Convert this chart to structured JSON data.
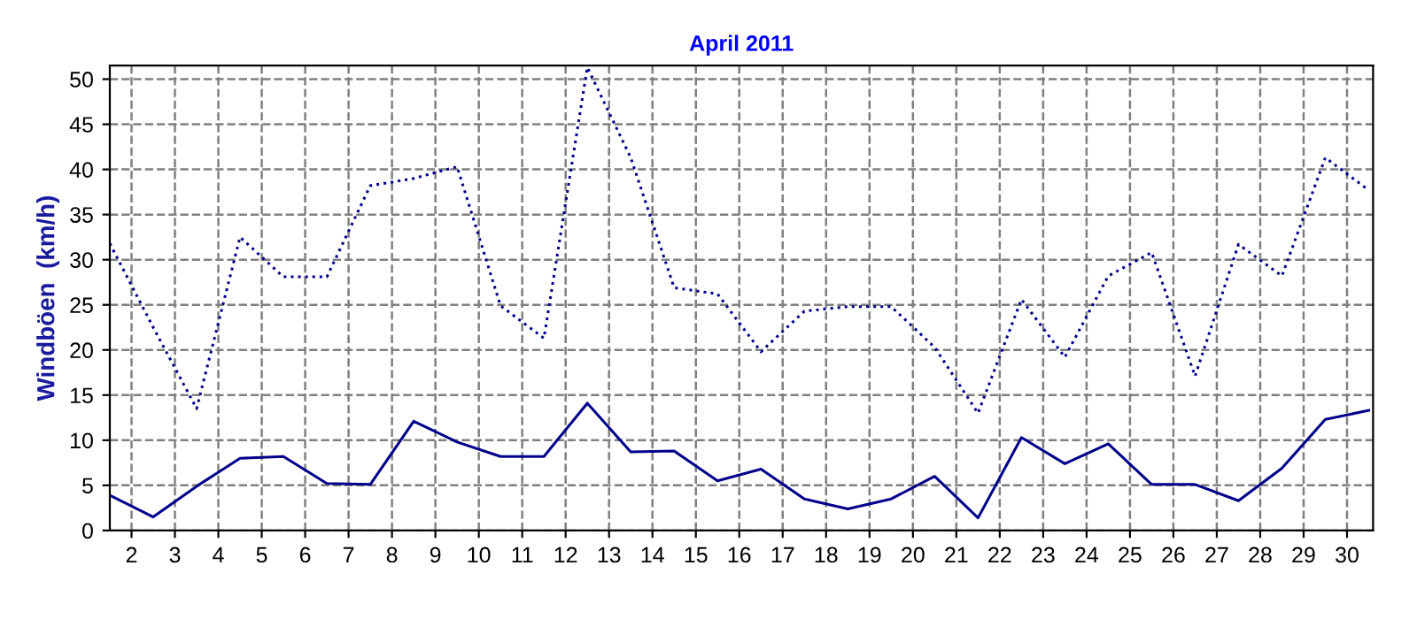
{
  "chart_data": {
    "type": "line",
    "title": "April 2011",
    "ylabel": "Windböen  (km/h)",
    "x": [
      1.5,
      2.5,
      3.5,
      4.5,
      5.5,
      6.5,
      7.5,
      8.5,
      9.5,
      10.5,
      11.5,
      12.5,
      13.5,
      14.5,
      15.5,
      16.5,
      17.5,
      18.5,
      19.5,
      20.5,
      21.5,
      22.5,
      23.5,
      24.5,
      25.5,
      26.5,
      27.5,
      28.5,
      29.5,
      30.5
    ],
    "series": [
      {
        "color": "#00008b",
        "line_style": "dotted",
        "values": [
          31.8,
          22.5,
          13.5,
          32.5,
          28.1,
          28.1,
          38.2,
          39.0,
          40.3,
          24.9,
          21.3,
          51.3,
          41.3,
          26.9,
          26.2,
          19.8,
          24.3,
          24.8,
          24.8,
          20.3,
          13.0,
          25.6,
          19.2,
          28.2,
          30.8,
          17.1,
          31.7,
          28.2,
          41.3,
          37.7
        ]
      },
      {
        "color": "#00008b",
        "line_style": "solid",
        "values": [
          3.9,
          1.5,
          4.9,
          8.0,
          8.2,
          5.2,
          5.1,
          12.1,
          9.8,
          8.2,
          8.2,
          14.1,
          8.7,
          8.8,
          5.5,
          6.8,
          3.5,
          2.4,
          3.5,
          6.0,
          1.4,
          10.3,
          7.4,
          9.6,
          5.1,
          5.1,
          3.3,
          6.9,
          12.3,
          13.3
        ]
      }
    ],
    "xlim": [
      1.5,
      30.6
    ],
    "xticks": [
      2,
      3,
      4,
      5,
      6,
      7,
      8,
      9,
      10,
      11,
      12,
      13,
      14,
      15,
      16,
      17,
      18,
      19,
      20,
      21,
      22,
      23,
      24,
      25,
      26,
      27,
      28,
      29,
      30
    ],
    "ylim": [
      0,
      51.5
    ],
    "yticks": [
      0,
      5,
      10,
      15,
      20,
      25,
      30,
      35,
      40,
      45,
      50
    ],
    "grid": true,
    "marker": "none"
  }
}
